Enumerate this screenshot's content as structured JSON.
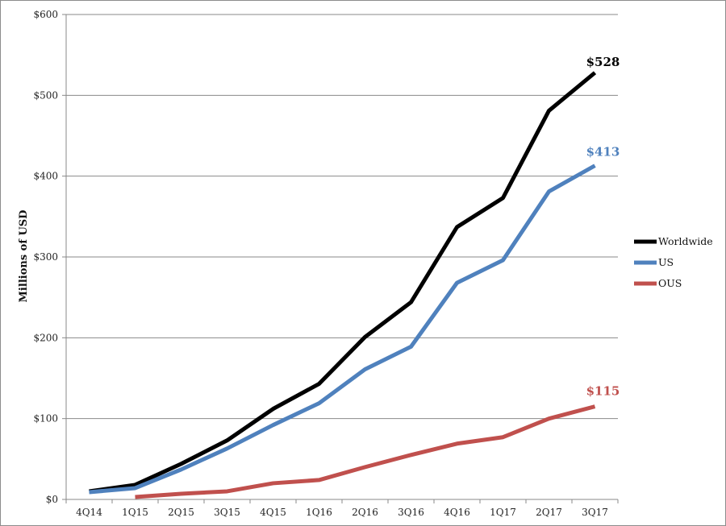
{
  "chart_data": {
    "type": "line",
    "title": "",
    "xlabel": "",
    "ylabel": "Millions of USD",
    "categories": [
      "4Q14",
      "1Q15",
      "2Q15",
      "3Q15",
      "4Q15",
      "1Q16",
      "2Q16",
      "3Q16",
      "4Q16",
      "1Q17",
      "2Q17",
      "3Q17"
    ],
    "ylim": [
      0,
      600
    ],
    "yticks": [
      0,
      100,
      200,
      300,
      400,
      500,
      600
    ],
    "ytick_labels": [
      "$0",
      "$100",
      "$200",
      "$300",
      "$400",
      "$500",
      "$600"
    ],
    "grid": true,
    "legend_position": "right",
    "series": [
      {
        "name": "Worldwide",
        "color": "#000000",
        "end_label": "$528",
        "values": [
          10,
          18,
          44,
          73,
          112,
          143,
          201,
          244,
          337,
          373,
          481,
          528
        ]
      },
      {
        "name": "US",
        "color": "#4f81bd",
        "end_label": "$413",
        "values": [
          9,
          14,
          37,
          63,
          92,
          119,
          161,
          189,
          268,
          296,
          381,
          413
        ]
      },
      {
        "name": "OUS",
        "color": "#c0504d",
        "end_label": "$115",
        "values": [
          null,
          3,
          7,
          10,
          20,
          24,
          40,
          55,
          69,
          77,
          100,
          115
        ]
      }
    ]
  }
}
